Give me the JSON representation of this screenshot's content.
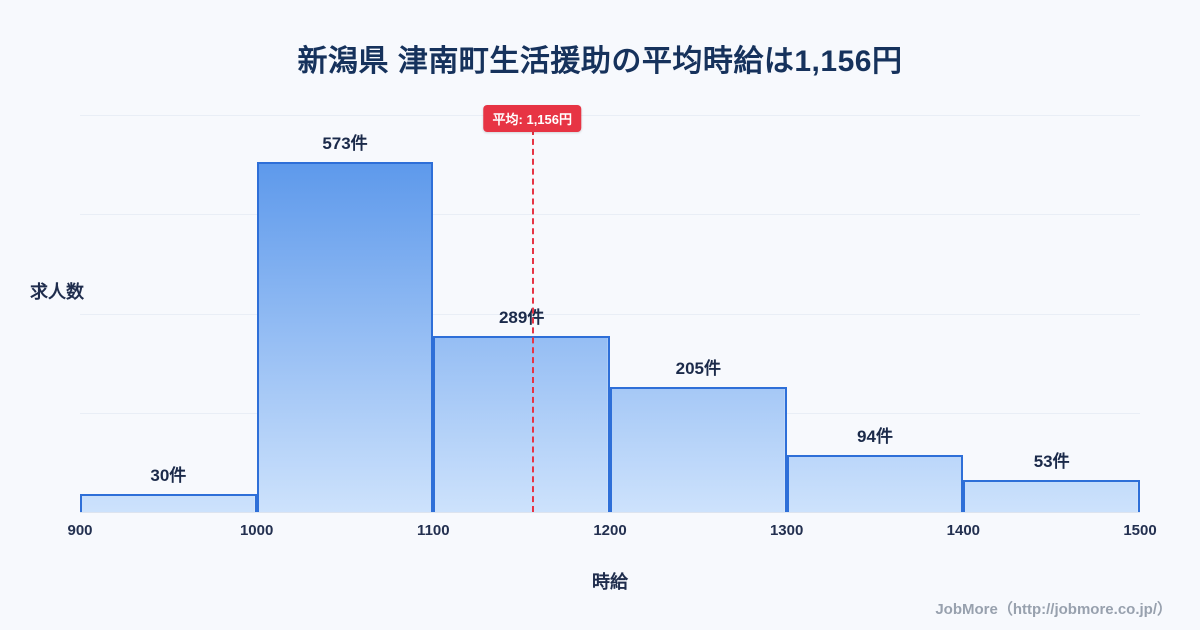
{
  "page": {
    "footer": "JobMore（http://jobmore.co.jp/）"
  },
  "chart_data": {
    "type": "bar",
    "title": "新潟県 津南町生活援助の平均時給は1,156円",
    "xlabel": "時給",
    "ylabel": "求人数",
    "bin_edges": [
      900,
      1000,
      1100,
      1200,
      1300,
      1400,
      1500
    ],
    "x_tick_labels": [
      "900",
      "1000",
      "1100",
      "1200",
      "1300",
      "1400",
      "1500"
    ],
    "values": [
      30,
      573,
      289,
      205,
      94,
      53
    ],
    "bar_labels": [
      "30件",
      "573件",
      "289件",
      "205件",
      "94件",
      "53件"
    ],
    "mean": {
      "value": 1156,
      "label": "平均: 1,156円"
    },
    "x_range": [
      900,
      1500
    ],
    "ylim": [
      0,
      650
    ],
    "grid": "horizontal",
    "legend": "none",
    "colors": {
      "background": "#f7f9fd",
      "bar_gradient_top": "#4e8fe9",
      "bar_gradient_bottom": "#cde2fc",
      "bar_border": "#2e6fd8",
      "mean_line": "#e73444",
      "badge_bg": "#e73444",
      "badge_text": "#ffffff",
      "title_text": "#16325c",
      "grid_line": "#e9eef6"
    }
  }
}
